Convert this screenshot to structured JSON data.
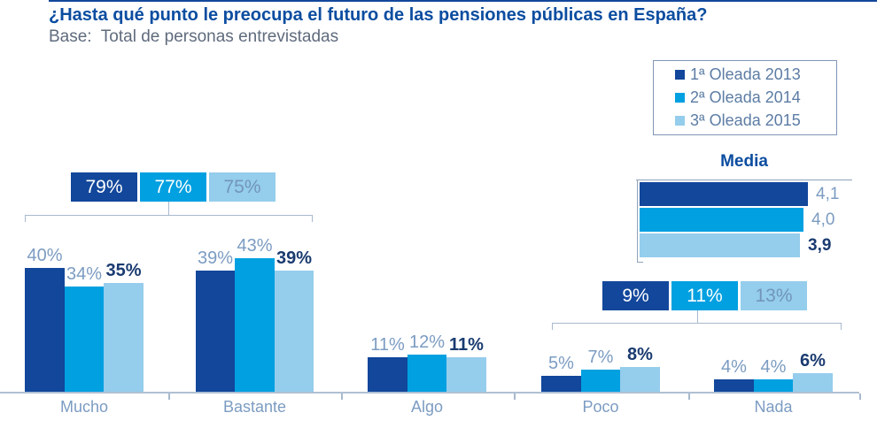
{
  "header": {
    "title": "¿Hasta qué punto le preocupa el futuro de las pensiones públicas en España?",
    "subtitle": "Base:  Total de personas entrevistadas"
  },
  "legend": {
    "position": "top-right",
    "items": [
      {
        "label": "1ª Oleada 2013",
        "color": "#12479B"
      },
      {
        "label": "2ª Oleada 2014",
        "color": "#00A0E1"
      },
      {
        "label": "3ª Oleada 2015",
        "color": "#95CDEC"
      }
    ]
  },
  "chart_data": {
    "type": "bar",
    "title": "¿Hasta qué punto le preocupa el futuro de las pensiones públicas en España?",
    "subtitle": "Base:  Total de personas entrevistadas",
    "xlabel": "",
    "ylabel": "",
    "ylim": [
      0,
      50
    ],
    "grid": false,
    "value_suffix": "%",
    "categories": [
      "Mucho",
      "Bastante",
      "Algo",
      "Poco",
      "Nada"
    ],
    "series": [
      {
        "name": "1ª Oleada 2013",
        "color": "#12479B",
        "values": [
          40,
          39,
          11,
          5,
          4
        ]
      },
      {
        "name": "2ª Oleada 2014",
        "color": "#00A0E1",
        "values": [
          34,
          43,
          12,
          7,
          4
        ]
      },
      {
        "name": "3ª Oleada 2015",
        "color": "#95CDEC",
        "values": [
          35,
          39,
          11,
          8,
          6
        ]
      }
    ],
    "summaries": [
      {
        "group": "Mucho + Bastante",
        "span_categories": [
          "Mucho",
          "Bastante"
        ],
        "values": [
          "79%",
          "77%",
          "75%"
        ]
      },
      {
        "group": "Poco + Nada",
        "span_categories": [
          "Poco",
          "Nada"
        ],
        "values": [
          "9%",
          "11%",
          "13%"
        ]
      }
    ],
    "media": {
      "title": "Media",
      "bars": [
        {
          "series": "1ª Oleada 2013",
          "label": "4,1",
          "value": 4.1,
          "color": "#12479B"
        },
        {
          "series": "2ª Oleada 2014",
          "label": "4,0",
          "value": 4.0,
          "color": "#00A0E1"
        },
        {
          "series": "3ª Oleada 2015",
          "label": "3,9",
          "value": 3.9,
          "color": "#95CDEC"
        }
      ]
    }
  },
  "colors": {
    "title": "#0B4DA0",
    "subtitle_text": "#5F6B7D",
    "value_label": "#7C9CC2",
    "value_label_emphasis": "#1A3B70",
    "category_label": "#7C9CC2",
    "axis_line": "#B0C0D3",
    "bracket_line": "#A8B9CD",
    "summary_text_on_dark": "#FFFFFF",
    "summary_text_on_light": "#7295BB"
  }
}
